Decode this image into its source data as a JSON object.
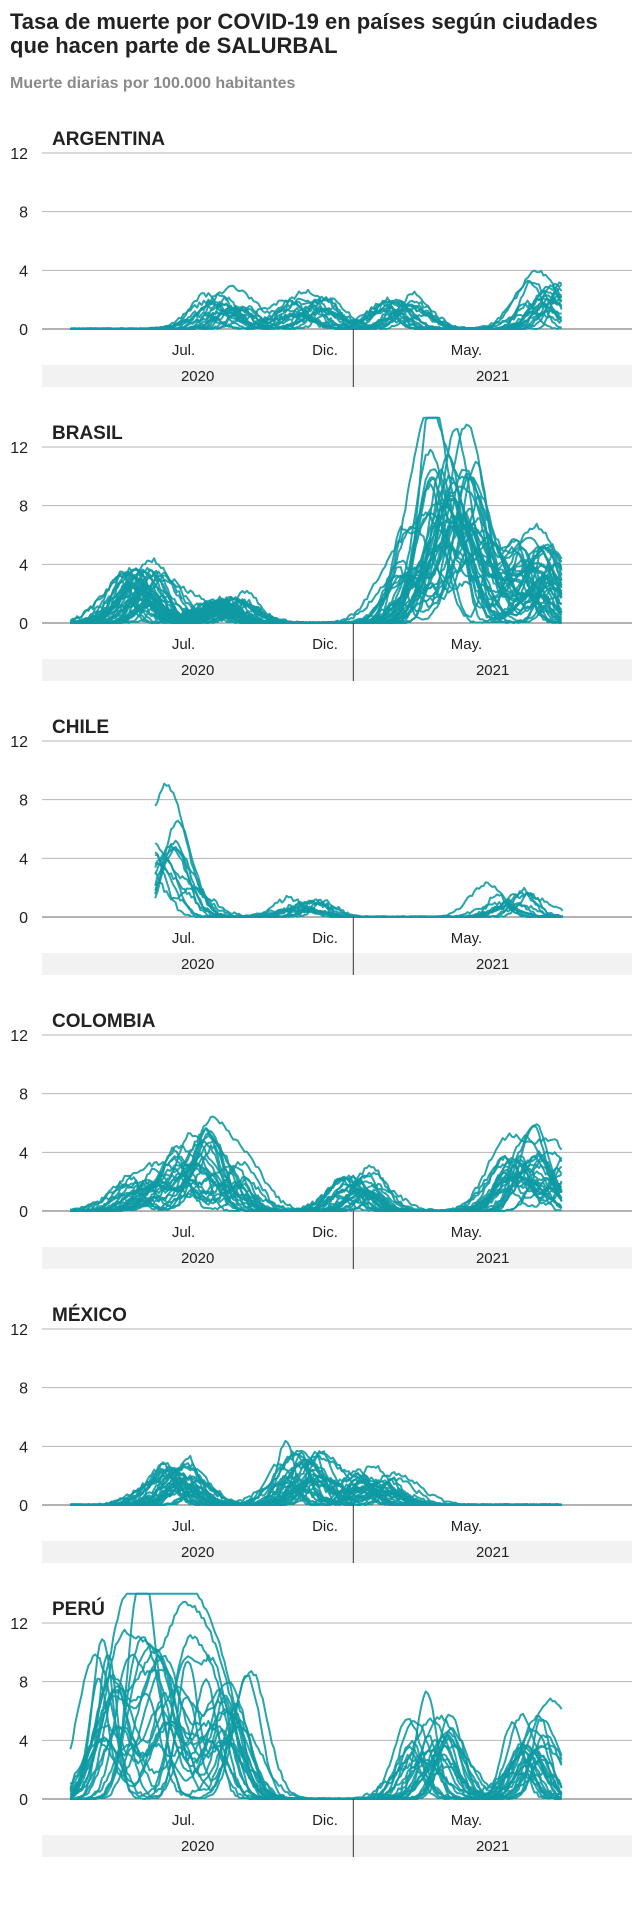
{
  "title": "Tasa de muerte por COVID-19 en países según ciudades que hacen parte de SALURBAL",
  "subtitle": "Muerte diarias por 100.000 habitantes",
  "colors": {
    "series": "#0f9aa3",
    "grid": "#b5b5b5",
    "axis": "#666666",
    "year_band": "#f2f2f2",
    "text": "#222222",
    "subtitle": "#8a8a8a"
  },
  "chart_data": [
    {
      "type": "line",
      "country": "ARGENTINA",
      "yticks": [
        "0",
        "4",
        "8",
        "12"
      ],
      "ylim": [
        0,
        12
      ],
      "xticks": [
        "Jul.",
        "Dic.",
        "May."
      ],
      "years": [
        "2020",
        "2021"
      ],
      "series_count": 18,
      "peaks": [
        [
          6.5,
          2.8
        ],
        [
          9.3,
          2.6
        ],
        [
          12.6,
          2.5
        ],
        [
          17.7,
          3.9
        ]
      ]
    },
    {
      "type": "line",
      "country": "BRASIL",
      "yticks": [
        "0",
        "4",
        "8",
        "12"
      ],
      "ylim": [
        0,
        12
      ],
      "xticks": [
        "Jul.",
        "Dic.",
        "May."
      ],
      "years": [
        "2020",
        "2021"
      ],
      "series_count": 40,
      "peaks": [
        [
          3.6,
          4.3
        ],
        [
          6.5,
          2.2
        ],
        [
          13.3,
          5.5
        ],
        [
          14.3,
          9.5
        ],
        [
          15.2,
          8.5
        ],
        [
          17.4,
          6.6
        ]
      ]
    },
    {
      "type": "line",
      "country": "CHILE",
      "yticks": [
        "0",
        "4",
        "8",
        "12"
      ],
      "ylim": [
        0,
        12
      ],
      "xticks": [
        "Jul.",
        "Dic.",
        "May."
      ],
      "years": [
        "2020",
        "2021"
      ],
      "series_count": 12,
      "peaks": [
        [
          4.1,
          5.8
        ],
        [
          4.6,
          3.2
        ],
        [
          9.3,
          1.3
        ],
        [
          16.5,
          2.2
        ]
      ]
    },
    {
      "type": "line",
      "country": "COLOMBIA",
      "yticks": [
        "0",
        "4",
        "8",
        "12"
      ],
      "ylim": [
        0,
        12
      ],
      "xticks": [
        "Jul.",
        "Dic.",
        "May."
      ],
      "years": [
        "2020",
        "2021"
      ],
      "series_count": 25,
      "peaks": [
        [
          3.6,
          2.8
        ],
        [
          5.4,
          4.6
        ],
        [
          6.5,
          4.0
        ],
        [
          11.1,
          3.1
        ],
        [
          16.8,
          4.7
        ],
        [
          18.0,
          4.5
        ]
      ]
    },
    {
      "type": "line",
      "country": "MÉXICO",
      "yticks": [
        "0",
        "4",
        "8",
        "12"
      ],
      "ylim": [
        0,
        12
      ],
      "xticks": [
        "Jul.",
        "Dic.",
        "May."
      ],
      "years": [
        "2020",
        "2021"
      ],
      "series_count": 30,
      "peaks": [
        [
          4.7,
          3.3
        ],
        [
          9.1,
          4.3
        ],
        [
          11.8,
          2.7
        ]
      ]
    },
    {
      "type": "line",
      "country": "PERÚ",
      "yticks": [
        "0",
        "4",
        "8",
        "12"
      ],
      "ylim": [
        0,
        12
      ],
      "xticks": [
        "Jul.",
        "Dic.",
        "May."
      ],
      "years": [
        "2020",
        "2021"
      ],
      "series_count": 24,
      "peaks": [
        [
          2.6,
          13.8
        ],
        [
          4.4,
          11.7
        ],
        [
          6.6,
          11.0
        ],
        [
          13.7,
          7.2
        ],
        [
          17.3,
          6.8
        ]
      ]
    }
  ]
}
